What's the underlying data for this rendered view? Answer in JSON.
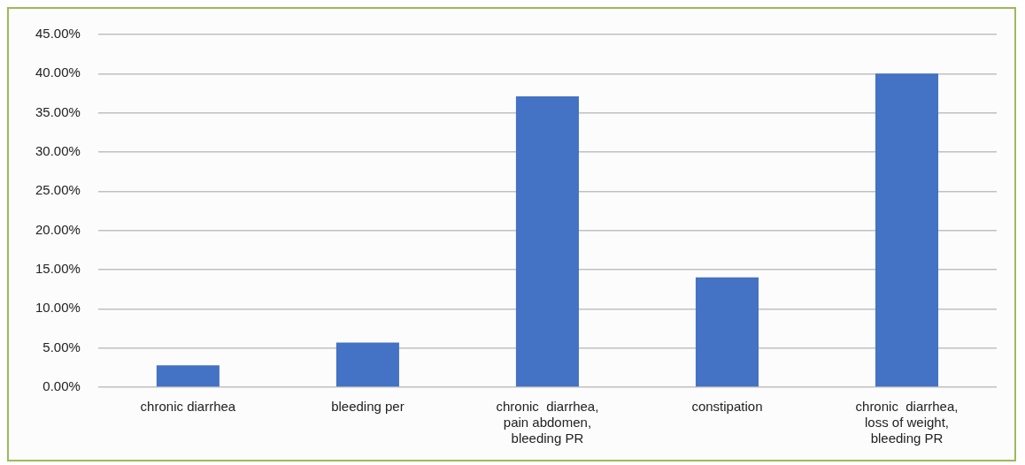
{
  "chart_data": {
    "type": "bar",
    "categories": [
      "chronic diarrhea",
      "bleeding per",
      "chronic  diarrhea, pain abdomen, bleeding PR",
      "constipation",
      "chronic  diarrhea, loss of weight, bleeding PR"
    ],
    "values": [
      2.8,
      5.7,
      37.1,
      14.0,
      40.0
    ],
    "color": "#4472c4",
    "ylim": [
      0,
      45
    ],
    "yticks": [
      {
        "value": 0,
        "label": "0.00%"
      },
      {
        "value": 5,
        "label": "5.00%"
      },
      {
        "value": 10,
        "label": "10.00%"
      },
      {
        "value": 15,
        "label": "15.00%"
      },
      {
        "value": 20,
        "label": "20.00%"
      },
      {
        "value": 25,
        "label": "25.00%"
      },
      {
        "value": 30,
        "label": "30.00%"
      },
      {
        "value": 35,
        "label": "35.00%"
      },
      {
        "value": 40,
        "label": "40.00%"
      },
      {
        "value": 45,
        "label": "45.00%"
      }
    ],
    "grid": "y",
    "legend": false
  }
}
